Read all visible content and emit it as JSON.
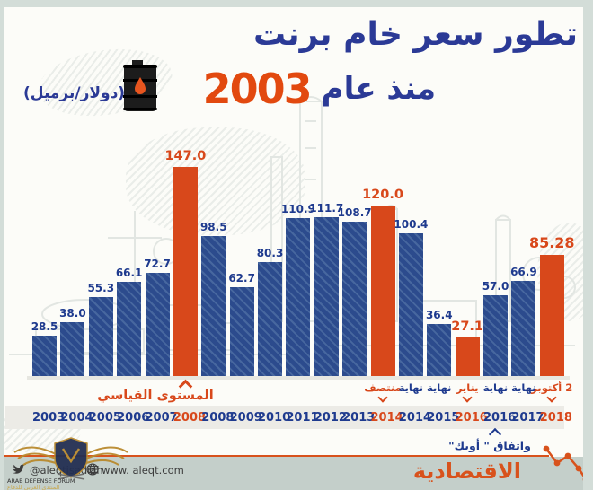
{
  "title": {
    "line1": "تطور سعر خام برنت",
    "line2_text": "منذ عام",
    "line2_year": "2003"
  },
  "unit_label": "(دولار/برميل)",
  "colors": {
    "title_navy": "#2b3a96",
    "label_navy": "#1e3a8e",
    "accent_orange": "#d8481b",
    "bar_blue": "#2c4b8d",
    "years_band": "#ecebe6",
    "footer_band": "#c4cfca",
    "frame": "#d3ddd8"
  },
  "chart_data": {
    "type": "bar",
    "title": "تطور سعر خام برنت منذ عام 2003",
    "ylabel": "دولار/برميل",
    "ylim": [
      0,
      150
    ],
    "grid": false,
    "categories": [
      "2003",
      "2004",
      "2005",
      "2006",
      "2007",
      "2008",
      "2008",
      "2009",
      "2010",
      "2011",
      "2012",
      "2013",
      "2014",
      "2014",
      "2015",
      "2016",
      "2016",
      "2017",
      "2018"
    ],
    "values": [
      28.5,
      38.0,
      55.3,
      66.1,
      72.7,
      147.0,
      98.5,
      62.7,
      80.3,
      110.9,
      111.7,
      108.7,
      120.0,
      100.4,
      36.4,
      27.1,
      57.0,
      66.9,
      85.28
    ],
    "bars": [
      {
        "year": "2003",
        "value": 28.5,
        "label": "28.5",
        "highlight": false,
        "period_label": ""
      },
      {
        "year": "2004",
        "value": 38.0,
        "label": "38.0",
        "highlight": false,
        "period_label": ""
      },
      {
        "year": "2005",
        "value": 55.3,
        "label": "55.3",
        "highlight": false,
        "period_label": ""
      },
      {
        "year": "2006",
        "value": 66.1,
        "label": "66.1",
        "highlight": false,
        "period_label": ""
      },
      {
        "year": "2007",
        "value": 72.7,
        "label": "72.7",
        "highlight": false,
        "period_label": ""
      },
      {
        "year": "2008",
        "value": 147.0,
        "label": "147.0",
        "highlight": true,
        "period_label": ""
      },
      {
        "year": "2008",
        "value": 98.5,
        "label": "98.5",
        "highlight": false,
        "period_label": ""
      },
      {
        "year": "2009",
        "value": 62.7,
        "label": "62.7",
        "highlight": false,
        "period_label": ""
      },
      {
        "year": "2010",
        "value": 80.3,
        "label": "80.3",
        "highlight": false,
        "period_label": ""
      },
      {
        "year": "2011",
        "value": 110.9,
        "label": "110.9",
        "highlight": false,
        "period_label": ""
      },
      {
        "year": "2012",
        "value": 111.7,
        "label": "111.7",
        "highlight": false,
        "period_label": ""
      },
      {
        "year": "2013",
        "value": 108.7,
        "label": "108.7",
        "highlight": false,
        "period_label": ""
      },
      {
        "year": "2014",
        "value": 120.0,
        "label": "120.0",
        "highlight": true,
        "period_label": "منتصف"
      },
      {
        "year": "2014",
        "value": 100.4,
        "label": "100.4",
        "highlight": false,
        "period_label": "نهاية"
      },
      {
        "year": "2015",
        "value": 36.4,
        "label": "36.4",
        "highlight": false,
        "period_label": "نهاية"
      },
      {
        "year": "2016",
        "value": 27.1,
        "label": "27.1",
        "highlight": true,
        "period_label": "يناير"
      },
      {
        "year": "2016",
        "value": 57.0,
        "label": "57.0",
        "highlight": false,
        "period_label": "نهاية"
      },
      {
        "year": "2017",
        "value": 66.9,
        "label": "66.9",
        "highlight": false,
        "period_label": "نهاية"
      },
      {
        "year": "2018",
        "value": 85.28,
        "label": "85.28",
        "highlight": true,
        "period_label": "2 أكتوبر"
      }
    ],
    "annotations": [
      {
        "text": "المستوى القياسي",
        "bar_index": 5
      },
      {
        "text": "واتفاق \" أوبك\"",
        "bar_index": 16
      }
    ]
  },
  "footer": {
    "twitter_handle": "@aleqtisadiah",
    "website": "www. aleqt.com",
    "brand": "الاقتصادية"
  },
  "watermark": {
    "line1": "ARAB DEFENSE FORUM"
  }
}
